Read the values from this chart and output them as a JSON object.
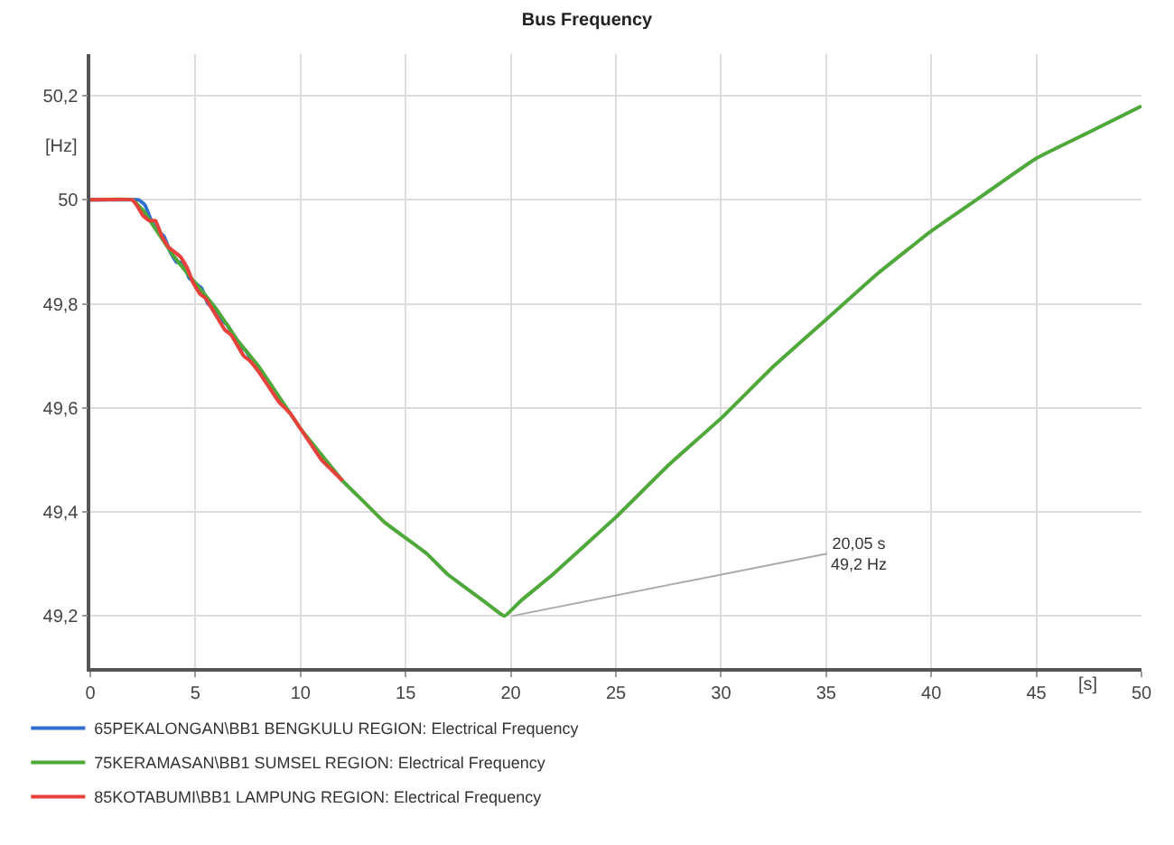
{
  "chart_data": {
    "type": "line",
    "title": "Bus Frequency",
    "xlabel": "[s]",
    "ylabel": "[Hz]",
    "xlim": [
      0,
      50
    ],
    "xticks": [
      0,
      5,
      10,
      15,
      20,
      25,
      30,
      35,
      40,
      45,
      50
    ],
    "ylim": [
      49.1,
      50.28
    ],
    "yticks": [
      {
        "value": 49.2,
        "label": "49,2"
      },
      {
        "value": 49.4,
        "label": "49,4"
      },
      {
        "value": 49.6,
        "label": "49,6"
      },
      {
        "value": 49.8,
        "label": "49,8"
      },
      {
        "value": 50,
        "label": "50"
      },
      {
        "value": 50.2,
        "label": "50,2"
      }
    ],
    "grid": true,
    "legend": "bottom",
    "marker": "none",
    "line_style": "solid",
    "annotations": [
      {
        "text": "20,05 s\n49,2 Hz",
        "x": 20.05,
        "y": 49.2
      }
    ],
    "series": [
      {
        "name": "65PEKALONGAN\\BB1 BENGKULU REGION: Electrical Frequency",
        "color": "#2e6fd0",
        "x": [
          0,
          2,
          2.3,
          2.6,
          2.9,
          3.2,
          3.5,
          3.8,
          4.1,
          4.4,
          4.7,
          5,
          5.3,
          5.6,
          5.9,
          6.2,
          6.5,
          6.8,
          7.1,
          7.4,
          7.7,
          8
        ],
        "values": [
          50,
          50,
          50,
          49.99,
          49.96,
          49.94,
          49.93,
          49.9,
          49.88,
          49.88,
          49.85,
          49.84,
          49.83,
          49.8,
          49.79,
          49.77,
          49.76,
          49.74,
          49.72,
          49.71,
          49.69,
          49.68
        ]
      },
      {
        "name": "75KERAMASAN\\BB1 SUMSEL REGION: Electrical Frequency",
        "color": "#4fa83a",
        "x": [
          0,
          2,
          2.5,
          3,
          4,
          5,
          6,
          7,
          8,
          9,
          10,
          11,
          12,
          13,
          14,
          15,
          16,
          17,
          18,
          19,
          19.7,
          20.5,
          22,
          25,
          27.5,
          30,
          32.5,
          35,
          37.5,
          40,
          42.5,
          45,
          47.5,
          50
        ],
        "values": [
          50,
          50,
          49.98,
          49.95,
          49.89,
          49.84,
          49.79,
          49.73,
          49.68,
          49.62,
          49.56,
          49.51,
          49.46,
          49.42,
          49.38,
          49.35,
          49.32,
          49.28,
          49.25,
          49.22,
          49.2,
          49.23,
          49.28,
          49.39,
          49.49,
          49.58,
          49.68,
          49.77,
          49.86,
          49.94,
          50.01,
          50.08,
          50.13,
          50.18
        ]
      },
      {
        "name": "85KOTABUMI\\BB1 LAMPUNG REGION: Electrical Frequency",
        "color": "#e8403a",
        "x": [
          0,
          2,
          2.2,
          2.5,
          2.8,
          3.1,
          3.4,
          3.7,
          4,
          4.3,
          4.6,
          4.9,
          5.2,
          5.5,
          5.8,
          6.1,
          6.4,
          6.7,
          7,
          7.3,
          7.6,
          8,
          8.5,
          9,
          9.5,
          10,
          10.5,
          11,
          11.5,
          12
        ],
        "values": [
          50,
          50,
          49.99,
          49.97,
          49.96,
          49.96,
          49.93,
          49.91,
          49.9,
          49.89,
          49.87,
          49.84,
          49.82,
          49.81,
          49.79,
          49.77,
          49.75,
          49.74,
          49.72,
          49.7,
          49.69,
          49.67,
          49.64,
          49.61,
          49.59,
          49.56,
          49.53,
          49.5,
          49.48,
          49.46
        ]
      }
    ]
  }
}
